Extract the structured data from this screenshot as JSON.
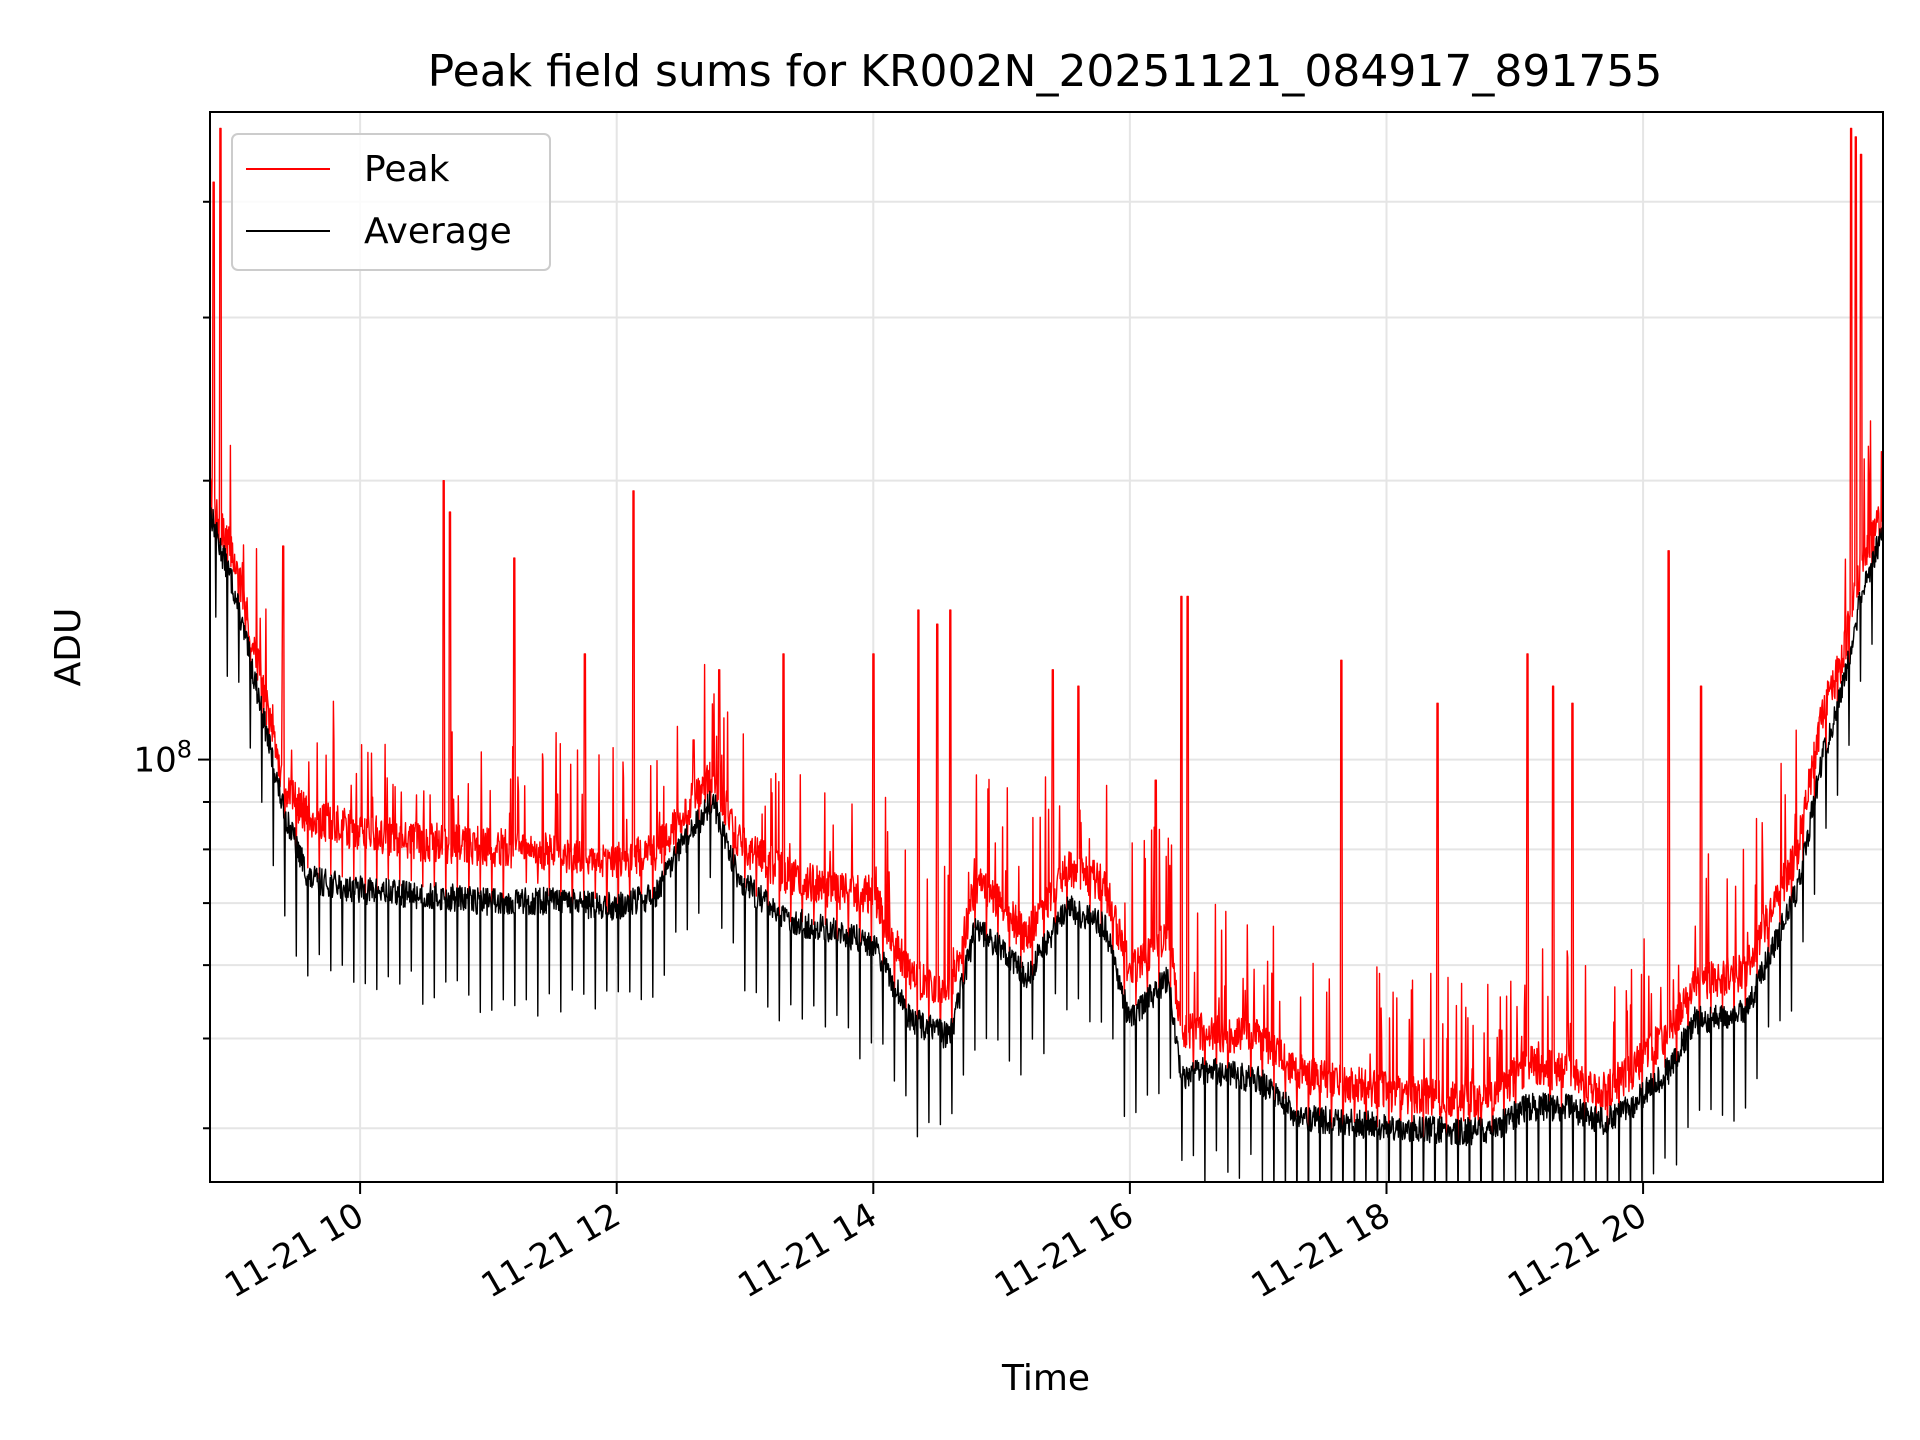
{
  "chart_data": {
    "type": "line",
    "title": "Peak field sums for KR002N_20251121_084917_891755",
    "xlabel": "Time",
    "ylabel": "ADU",
    "y_scale": "log",
    "xlim_hours": [
      8.83,
      21.87
    ],
    "ylim": [
      35000000,
      500000000
    ],
    "x_ticks": [
      {
        "value": 10,
        "label": "11-21 10"
      },
      {
        "value": 12,
        "label": "11-21 12"
      },
      {
        "value": 14,
        "label": "11-21 14"
      },
      {
        "value": 16,
        "label": "11-21 16"
      },
      {
        "value": 18,
        "label": "11-21 18"
      },
      {
        "value": 20,
        "label": "11-21 20"
      }
    ],
    "y_major_ticks": [
      {
        "value": 100000000,
        "base": "10",
        "exp": "8"
      }
    ],
    "y_minor_ticks": [
      40000000,
      50000000,
      60000000,
      70000000,
      80000000,
      90000000,
      200000000,
      300000000,
      400000000
    ],
    "grid": true,
    "legend_position": "top-left",
    "series": [
      {
        "name": "Peak",
        "color": "#ff0000",
        "baseline": [
          [
            8.83,
            190000000
          ],
          [
            8.9,
            175000000
          ],
          [
            9.0,
            165000000
          ],
          [
            9.2,
            125000000
          ],
          [
            9.4,
            92000000
          ],
          [
            9.6,
            85000000
          ],
          [
            10.0,
            82000000
          ],
          [
            10.5,
            80000000
          ],
          [
            11.0,
            79000000
          ],
          [
            11.5,
            78000000
          ],
          [
            12.0,
            76000000
          ],
          [
            12.3,
            78000000
          ],
          [
            12.5,
            85000000
          ],
          [
            12.75,
            95000000
          ],
          [
            12.95,
            80000000
          ],
          [
            13.3,
            74000000
          ],
          [
            13.7,
            71000000
          ],
          [
            14.0,
            70000000
          ],
          [
            14.3,
            57000000
          ],
          [
            14.6,
            55000000
          ],
          [
            14.8,
            72000000
          ],
          [
            15.0,
            68000000
          ],
          [
            15.2,
            63000000
          ],
          [
            15.5,
            75000000
          ],
          [
            15.8,
            72000000
          ],
          [
            16.0,
            58000000
          ],
          [
            16.3,
            64000000
          ],
          [
            16.4,
            50000000
          ],
          [
            16.6,
            50000000
          ],
          [
            17.0,
            49000000
          ],
          [
            17.3,
            45000000
          ],
          [
            17.6,
            44000000
          ],
          [
            18.0,
            43000000
          ],
          [
            18.5,
            42000000
          ],
          [
            18.8,
            42000000
          ],
          [
            19.1,
            46000000
          ],
          [
            19.4,
            45000000
          ],
          [
            19.7,
            43000000
          ],
          [
            19.9,
            45000000
          ],
          [
            20.2,
            50000000
          ],
          [
            20.4,
            56000000
          ],
          [
            20.8,
            58000000
          ],
          [
            21.2,
            78000000
          ],
          [
            21.4,
            110000000
          ],
          [
            21.55,
            125000000
          ],
          [
            21.7,
            160000000
          ],
          [
            21.87,
            180000000
          ]
        ],
        "spikes": [
          [
            8.86,
            420000000
          ],
          [
            8.91,
            480000000
          ],
          [
            9.4,
            170000000
          ],
          [
            10.65,
            200000000
          ],
          [
            10.7,
            185000000
          ],
          [
            11.2,
            165000000
          ],
          [
            11.75,
            130000000
          ],
          [
            12.13,
            195000000
          ],
          [
            12.6,
            105000000
          ],
          [
            12.8,
            125000000
          ],
          [
            13.3,
            130000000
          ],
          [
            14.0,
            130000000
          ],
          [
            14.35,
            145000000
          ],
          [
            14.5,
            140000000
          ],
          [
            14.6,
            145000000
          ],
          [
            15.4,
            125000000
          ],
          [
            15.6,
            120000000
          ],
          [
            16.4,
            150000000
          ],
          [
            16.45,
            150000000
          ],
          [
            16.2,
            95000000
          ],
          [
            17.65,
            128000000
          ],
          [
            18.4,
            115000000
          ],
          [
            19.1,
            130000000
          ],
          [
            19.3,
            120000000
          ],
          [
            19.45,
            115000000
          ],
          [
            20.2,
            168000000
          ],
          [
            20.45,
            120000000
          ],
          [
            21.62,
            480000000
          ],
          [
            21.66,
            470000000
          ],
          [
            21.7,
            450000000
          ]
        ]
      },
      {
        "name": "Average",
        "color": "#000000",
        "baseline": [
          [
            8.83,
            185000000
          ],
          [
            8.9,
            170000000
          ],
          [
            9.0,
            155000000
          ],
          [
            9.2,
            118000000
          ],
          [
            9.4,
            88000000
          ],
          [
            9.6,
            74000000
          ],
          [
            10.0,
            72000000
          ],
          [
            10.5,
            71000000
          ],
          [
            11.0,
            70000000
          ],
          [
            11.5,
            70000000
          ],
          [
            12.0,
            69000000
          ],
          [
            12.3,
            71000000
          ],
          [
            12.5,
            80000000
          ],
          [
            12.75,
            90000000
          ],
          [
            12.95,
            74000000
          ],
          [
            13.3,
            67000000
          ],
          [
            13.7,
            65000000
          ],
          [
            14.0,
            63000000
          ],
          [
            14.3,
            52000000
          ],
          [
            14.6,
            50000000
          ],
          [
            14.8,
            66000000
          ],
          [
            15.0,
            62000000
          ],
          [
            15.2,
            58000000
          ],
          [
            15.5,
            69000000
          ],
          [
            15.8,
            66000000
          ],
          [
            16.0,
            52000000
          ],
          [
            16.3,
            58000000
          ],
          [
            16.4,
            45000000
          ],
          [
            16.6,
            46000000
          ],
          [
            17.0,
            45000000
          ],
          [
            17.3,
            41000000
          ],
          [
            17.6,
            40500000
          ],
          [
            18.0,
            40000000
          ],
          [
            18.5,
            39500000
          ],
          [
            18.8,
            39500000
          ],
          [
            19.1,
            42000000
          ],
          [
            19.4,
            42000000
          ],
          [
            19.7,
            40500000
          ],
          [
            19.9,
            42000000
          ],
          [
            20.2,
            46000000
          ],
          [
            20.4,
            52000000
          ],
          [
            20.8,
            53000000
          ],
          [
            21.2,
            72000000
          ],
          [
            21.4,
            100000000
          ],
          [
            21.55,
            118000000
          ],
          [
            21.7,
            150000000
          ],
          [
            21.87,
            175000000
          ]
        ]
      }
    ]
  },
  "colors": {
    "peak": "#ff0000",
    "average": "#000000",
    "grid": "#e5e5e5",
    "axes": "#000000",
    "background": "#ffffff"
  }
}
